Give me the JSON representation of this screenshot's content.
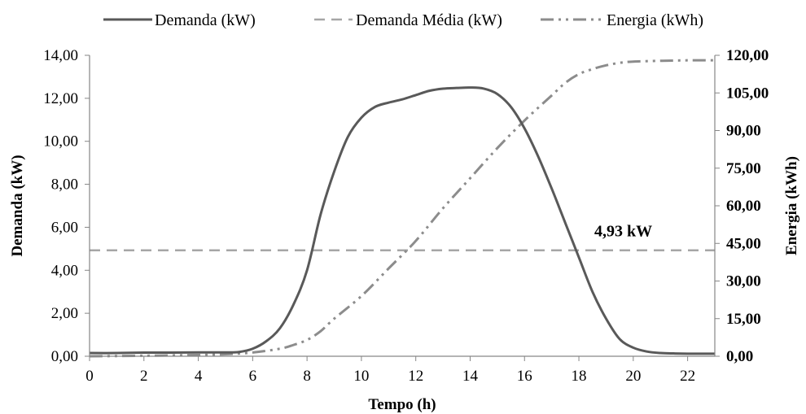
{
  "chart_data": {
    "type": "line",
    "xlabel": "Tempo (h)",
    "ylabel": "Demanda (kW)",
    "y2label": "Energia (kWh)",
    "xlim": [
      0,
      23
    ],
    "ylim": [
      0,
      14
    ],
    "y2lim": [
      0,
      120
    ],
    "x_ticks": [
      "0",
      "2",
      "4",
      "6",
      "8",
      "10",
      "12",
      "14",
      "16",
      "18",
      "20",
      "22"
    ],
    "y_ticks": [
      "0,00",
      "2,00",
      "4,00",
      "6,00",
      "8,00",
      "10,00",
      "12,00",
      "14,00"
    ],
    "y2_ticks": [
      "0,00",
      "15,00",
      "30,00",
      "45,00",
      "60,00",
      "75,00",
      "90,00",
      "105,00",
      "120,00"
    ],
    "legend": {
      "position": "top",
      "entries": [
        "Demanda (kW)",
        "Demanda Média (kW)",
        "Energia (kWh)"
      ]
    },
    "annotation": "4,93 kW",
    "series": [
      {
        "name": "Demanda (kW)",
        "axis": "left",
        "style": "solid",
        "color": "#595959",
        "x": [
          0,
          1,
          2,
          3,
          4,
          5,
          5.5,
          6,
          6.5,
          7,
          7.5,
          8,
          8.5,
          9,
          9.5,
          10,
          10.5,
          11,
          11.5,
          12,
          12.5,
          13,
          13.5,
          14,
          14.5,
          15,
          15.5,
          16,
          16.5,
          17,
          17.5,
          18,
          18.5,
          19,
          19.5,
          20,
          20.5,
          21,
          21.5,
          22,
          23
        ],
        "y": [
          0.15,
          0.15,
          0.17,
          0.17,
          0.18,
          0.18,
          0.2,
          0.35,
          0.7,
          1.3,
          2.4,
          4.0,
          6.6,
          8.6,
          10.2,
          11.1,
          11.6,
          11.8,
          11.95,
          12.15,
          12.35,
          12.45,
          12.48,
          12.5,
          12.45,
          12.2,
          11.6,
          10.6,
          9.3,
          7.8,
          6.2,
          4.6,
          3.0,
          1.75,
          0.8,
          0.4,
          0.22,
          0.15,
          0.13,
          0.12,
          0.12
        ]
      },
      {
        "name": "Demanda Média (kW)",
        "axis": "left",
        "style": "dashed",
        "color": "#a6a6a6",
        "x": [
          0,
          23
        ],
        "y": [
          4.93,
          4.93
        ]
      },
      {
        "name": "Energia (kWh)",
        "axis": "right",
        "style": "dash-dot-dot",
        "color": "#8c8c8c",
        "x": [
          0,
          2,
          4,
          5,
          6,
          7,
          7.5,
          8,
          8.5,
          9,
          10,
          11,
          12,
          13,
          14,
          15,
          16,
          17,
          17.5,
          18,
          18.5,
          19,
          19.5,
          20,
          21,
          22,
          23
        ],
        "y": [
          0,
          0.2,
          0.5,
          0.8,
          1.5,
          3.0,
          4.5,
          6.5,
          10,
          15,
          24,
          35,
          46,
          59,
          71,
          83,
          94,
          104,
          109,
          112.5,
          114.5,
          116,
          117,
          117.5,
          117.8,
          118,
          118
        ]
      }
    ]
  }
}
